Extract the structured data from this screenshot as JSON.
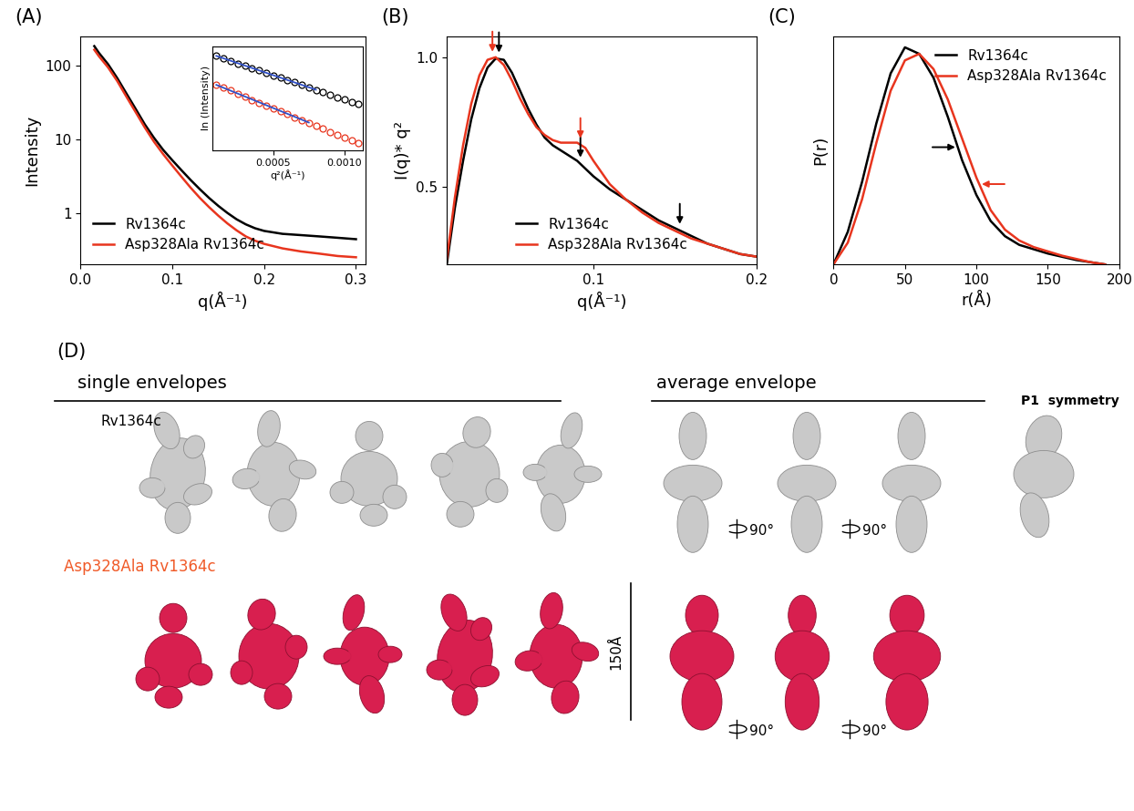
{
  "chart_data": [
    {
      "type": "line",
      "title": "(A)",
      "x_label": "q(Å⁻¹)",
      "y_label": "Intensity",
      "log": "y",
      "xlim": [
        0.0,
        0.31
      ],
      "xticks": [
        0.0,
        0.1,
        0.2,
        0.3
      ],
      "ylim": [
        0.2,
        250
      ],
      "yticks": [
        1,
        10,
        100
      ],
      "legend": "lower left",
      "x": [
        0.015,
        0.02,
        0.03,
        0.04,
        0.05,
        0.06,
        0.07,
        0.08,
        0.09,
        0.1,
        0.11,
        0.12,
        0.13,
        0.14,
        0.15,
        0.16,
        0.17,
        0.18,
        0.19,
        0.2,
        0.22,
        0.24,
        0.26,
        0.28,
        0.3
      ],
      "series": [
        {
          "name": "Rv1364c",
          "color": "#000000",
          "values": [
            185,
            150,
            105,
            68,
            42,
            26,
            16,
            10.5,
            7.2,
            5.2,
            3.8,
            2.8,
            2.1,
            1.6,
            1.25,
            1.0,
            0.82,
            0.7,
            0.62,
            0.57,
            0.52,
            0.5,
            0.48,
            0.46,
            0.44
          ]
        },
        {
          "name": "Asp328Ala Rv1364c",
          "color": "#e8351e",
          "values": [
            165,
            135,
            95,
            62,
            38,
            23.5,
            14.5,
            9.3,
            6.3,
            4.4,
            3.1,
            2.2,
            1.6,
            1.2,
            0.92,
            0.72,
            0.58,
            0.48,
            0.42,
            0.38,
            0.33,
            0.3,
            0.28,
            0.26,
            0.25
          ]
        }
      ]
    },
    {
      "type": "scatter",
      "x_label": "q²(Å⁻¹)",
      "y_label": "ln (Intensity)",
      "tick_labels": "x",
      "xlim": [
        7e-05,
        0.00113
      ],
      "xticks": [
        {
          "value": 0.0005,
          "label": "0.0005"
        },
        {
          "value": 0.001,
          "label": "0.0010"
        }
      ],
      "ylim": [
        3.2,
        5.35
      ],
      "yticks": [],
      "series": [
        {
          "color": "#000000",
          "marker": "o",
          "x": [
            0.0001,
            0.00015,
            0.0002,
            0.00025,
            0.0003,
            0.00035,
            0.0004,
            0.00045,
            0.0005,
            0.00055,
            0.0006,
            0.00065,
            0.0007,
            0.00075,
            0.0008,
            0.00085,
            0.0009,
            0.00095,
            0.001,
            0.00105,
            0.0011
          ],
          "values": [
            5.15,
            5.1,
            5.04,
            4.99,
            4.95,
            4.9,
            4.85,
            4.79,
            4.75,
            4.7,
            4.64,
            4.6,
            4.55,
            4.5,
            4.44,
            4.4,
            4.35,
            4.29,
            4.25,
            4.2,
            4.15
          ]
        },
        {
          "color": "#e8351e",
          "marker": "o",
          "x": [
            0.0001,
            0.00015,
            0.0002,
            0.00025,
            0.0003,
            0.00035,
            0.0004,
            0.00045,
            0.0005,
            0.00055,
            0.0006,
            0.00065,
            0.0007,
            0.00075,
            0.0008,
            0.00085,
            0.0009,
            0.00095,
            0.001,
            0.00105,
            0.0011
          ],
          "values": [
            4.55,
            4.49,
            4.43,
            4.37,
            4.31,
            4.24,
            4.18,
            4.12,
            4.06,
            4.0,
            3.94,
            3.88,
            3.82,
            3.76,
            3.7,
            3.64,
            3.58,
            3.52,
            3.46,
            3.4,
            3.35
          ]
        },
        {
          "type": "line",
          "color": "#3050c8",
          "x": [
            0.0001,
            0.0008
          ],
          "values": [
            5.15,
            4.45
          ]
        },
        {
          "type": "line",
          "color": "#3050c8",
          "x": [
            0.0001,
            0.00075
          ],
          "values": [
            4.55,
            3.77
          ]
        }
      ]
    },
    {
      "type": "line",
      "title": "(B)",
      "x_label": "q(Å⁻¹)",
      "y_label": "I(q)* q²",
      "xlim": [
        0.01,
        0.2
      ],
      "xticks": [
        0.1,
        0.2
      ],
      "ylim": [
        0.2,
        1.08
      ],
      "yticks": [
        0.5,
        1.0
      ],
      "legend": "lower center",
      "x": [
        0.01,
        0.015,
        0.02,
        0.025,
        0.03,
        0.035,
        0.04,
        0.045,
        0.05,
        0.055,
        0.06,
        0.065,
        0.07,
        0.075,
        0.08,
        0.085,
        0.09,
        0.095,
        0.1,
        0.11,
        0.12,
        0.13,
        0.14,
        0.15,
        0.16,
        0.17,
        0.18,
        0.19,
        0.2
      ],
      "series": [
        {
          "name": "Rv1364c",
          "color": "#000000",
          "arrows": [
            0.042,
            0.092,
            0.153
          ],
          "values": [
            0.2,
            0.42,
            0.6,
            0.76,
            0.88,
            0.96,
            0.995,
            0.99,
            0.94,
            0.87,
            0.8,
            0.74,
            0.69,
            0.66,
            0.64,
            0.62,
            0.6,
            0.57,
            0.54,
            0.49,
            0.45,
            0.41,
            0.37,
            0.34,
            0.31,
            0.28,
            0.26,
            0.24,
            0.23
          ]
        },
        {
          "name": "Asp328Ala Rv1364c",
          "color": "#e8351e",
          "arrows": [
            0.038,
            0.092
          ],
          "values": [
            0.22,
            0.46,
            0.66,
            0.82,
            0.93,
            0.99,
            1.0,
            0.97,
            0.91,
            0.84,
            0.78,
            0.73,
            0.7,
            0.68,
            0.67,
            0.67,
            0.67,
            0.65,
            0.6,
            0.51,
            0.45,
            0.4,
            0.36,
            0.33,
            0.3,
            0.28,
            0.26,
            0.24,
            0.23
          ]
        }
      ]
    },
    {
      "type": "line",
      "title": "(C)",
      "x_label": "r(Å)",
      "y_label": "P(r)",
      "tick_labels": "x",
      "xlim": [
        0,
        200
      ],
      "xticks": [
        0,
        50,
        100,
        150,
        200
      ],
      "ylim": [
        0,
        1.05
      ],
      "yticks": [],
      "legend": "upper right",
      "x": [
        0,
        10,
        20,
        30,
        40,
        50,
        60,
        70,
        80,
        90,
        100,
        110,
        120,
        130,
        140,
        150,
        160,
        170,
        180,
        190
      ],
      "series": [
        {
          "name": "Rv1364c",
          "color": "#000000",
          "arrows": [
            87
          ],
          "values": [
            0,
            0.15,
            0.38,
            0.65,
            0.88,
            1.0,
            0.97,
            0.86,
            0.68,
            0.48,
            0.32,
            0.2,
            0.13,
            0.09,
            0.07,
            0.05,
            0.035,
            0.02,
            0.01,
            0
          ]
        },
        {
          "name": "Asp328Ala Rv1364c",
          "color": "#e8351e",
          "arrows": [
            102
          ],
          "values": [
            0,
            0.1,
            0.3,
            0.56,
            0.8,
            0.94,
            0.97,
            0.9,
            0.76,
            0.58,
            0.4,
            0.25,
            0.16,
            0.11,
            0.08,
            0.06,
            0.04,
            0.025,
            0.01,
            0
          ]
        }
      ]
    }
  ],
  "diagram": {
    "label": "(D)",
    "headers": [
      "single envelopes",
      "average envelope"
    ],
    "row_labels": [
      "Rv1364c",
      "Asp328Ala Rv1364c"
    ],
    "symmetry_label": "P1  symmetry",
    "scale_bar": "150Å",
    "rotation_label": "90°"
  }
}
